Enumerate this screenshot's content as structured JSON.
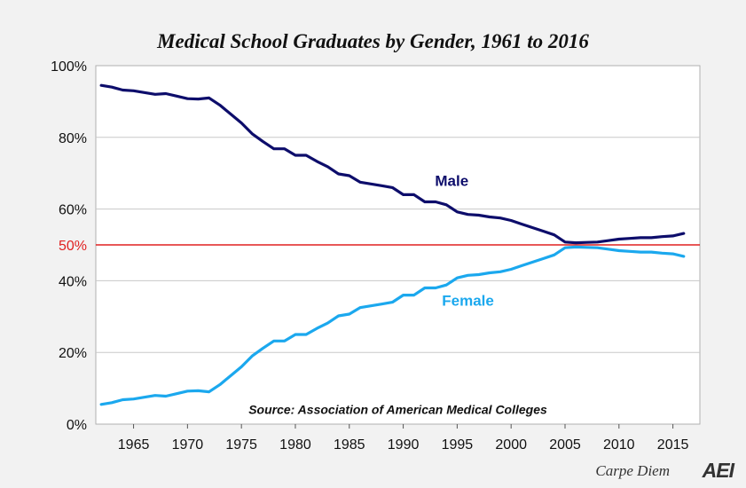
{
  "chart_data": {
    "type": "line",
    "title": "Medical School Graduates by Gender, 1961 to 2016",
    "xlabel": "",
    "ylabel": "",
    "xlim": [
      1961.5,
      2017.5
    ],
    "ylim": [
      0,
      100
    ],
    "y_ticks": [
      0,
      20,
      40,
      60,
      80,
      100
    ],
    "y_tick_labels": [
      "0%",
      "20%",
      "40%",
      "60%",
      "80%",
      "100%"
    ],
    "x_ticks": [
      1965,
      1970,
      1975,
      1980,
      1985,
      1990,
      1995,
      2000,
      2005,
      2010,
      2015
    ],
    "x_tick_labels": [
      "1965",
      "1970",
      "1975",
      "1980",
      "1985",
      "1990",
      "1995",
      "2000",
      "2005",
      "2010",
      "2015"
    ],
    "grid": true,
    "reference_line": {
      "value": 50,
      "label": "50%",
      "color": "#e02020"
    },
    "series": [
      {
        "name": "Male",
        "color": "#0d0d6b",
        "x": [
          1962,
          1963,
          1964,
          1965,
          1966,
          1967,
          1968,
          1969,
          1970,
          1971,
          1972,
          1973,
          1974,
          1975,
          1976,
          1977,
          1978,
          1979,
          1980,
          1981,
          1982,
          1983,
          1984,
          1985,
          1986,
          1987,
          1988,
          1989,
          1990,
          1991,
          1992,
          1993,
          1994,
          1995,
          1996,
          1997,
          1998,
          1999,
          2000,
          2001,
          2002,
          2003,
          2004,
          2005,
          2006,
          2007,
          2008,
          2009,
          2010,
          2011,
          2012,
          2013,
          2014,
          2015,
          2016
        ],
        "values": [
          94.5,
          94.0,
          93.2,
          93.0,
          92.5,
          92.0,
          92.2,
          91.5,
          90.8,
          90.7,
          91.0,
          89.0,
          86.5,
          84.0,
          81.0,
          78.8,
          76.8,
          76.8,
          75.0,
          75.0,
          73.3,
          71.8,
          69.8,
          69.3,
          67.5,
          67.0,
          66.5,
          66.0,
          64.0,
          64.0,
          62.0,
          62.0,
          61.2,
          59.2,
          58.5,
          58.3,
          57.8,
          57.5,
          56.8,
          55.8,
          54.8,
          53.8,
          52.8,
          50.8,
          50.6,
          50.7,
          50.8,
          51.2,
          51.6,
          51.8,
          52.0,
          52.0,
          52.3,
          52.5,
          53.2
        ]
      },
      {
        "name": "Female",
        "color": "#1ba8ee",
        "x": [
          1962,
          1963,
          1964,
          1965,
          1966,
          1967,
          1968,
          1969,
          1970,
          1971,
          1972,
          1973,
          1974,
          1975,
          1976,
          1977,
          1978,
          1979,
          1980,
          1981,
          1982,
          1983,
          1984,
          1985,
          1986,
          1987,
          1988,
          1989,
          1990,
          1991,
          1992,
          1993,
          1994,
          1995,
          1996,
          1997,
          1998,
          1999,
          2000,
          2001,
          2002,
          2003,
          2004,
          2005,
          2006,
          2007,
          2008,
          2009,
          2010,
          2011,
          2012,
          2013,
          2014,
          2015,
          2016
        ],
        "values": [
          5.5,
          6.0,
          6.8,
          7.0,
          7.5,
          8.0,
          7.8,
          8.5,
          9.2,
          9.3,
          9.0,
          11.0,
          13.5,
          16.0,
          19.0,
          21.2,
          23.2,
          23.2,
          25.0,
          25.0,
          26.7,
          28.2,
          30.2,
          30.7,
          32.5,
          33.0,
          33.5,
          34.0,
          36.0,
          36.0,
          38.0,
          38.0,
          38.8,
          40.8,
          41.5,
          41.7,
          42.2,
          42.5,
          43.2,
          44.2,
          45.2,
          46.2,
          47.2,
          49.2,
          49.4,
          49.3,
          49.2,
          48.8,
          48.4,
          48.2,
          48.0,
          48.0,
          47.7,
          47.5,
          46.8
        ]
      }
    ],
    "annotations": [
      {
        "text": "Male",
        "x": 1994.5,
        "y": 66.5,
        "color": "#0d0d6b"
      },
      {
        "text": "Female",
        "x": 1996,
        "y": 33.0,
        "color": "#1ba8ee"
      },
      {
        "text": "Source: Association of American Medical Colleges",
        "x": 1989.5,
        "y": 2.8,
        "color": "#111"
      }
    ]
  },
  "footer": {
    "blog_name": "Carpe Diem",
    "logo_text": "AEI"
  }
}
